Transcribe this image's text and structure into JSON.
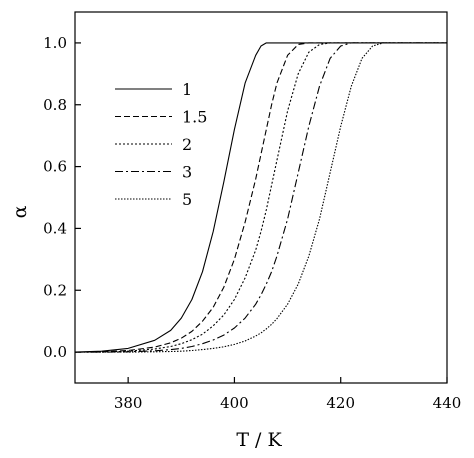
{
  "chart_data": {
    "type": "line",
    "xlabel": "T / K",
    "ylabel": "α",
    "xlim": [
      370,
      440
    ],
    "ylim": [
      -0.1,
      1.1
    ],
    "xticks": [
      380,
      400,
      420,
      440
    ],
    "xtick_labels": [
      "380",
      "400",
      "420",
      "440"
    ],
    "yticks": [
      0.0,
      0.2,
      0.4,
      0.6,
      0.8,
      1.0
    ],
    "ytick_labels": [
      "0.0",
      "0.2",
      "0.4",
      "0.6",
      "0.8",
      "1.0"
    ],
    "legend_position": "upper-left",
    "x": [
      370,
      375,
      380,
      385,
      388,
      390,
      392,
      394,
      396,
      398,
      400,
      402,
      404,
      405,
      406,
      407,
      408,
      410,
      412,
      414,
      416,
      418,
      420,
      422,
      424,
      426,
      428,
      430,
      440
    ],
    "series": [
      {
        "name": "1",
        "dash": "solid",
        "values": [
          0.0,
          0.003,
          0.012,
          0.038,
          0.07,
          0.11,
          0.17,
          0.26,
          0.39,
          0.55,
          0.72,
          0.87,
          0.96,
          0.99,
          1.0,
          1.0,
          1.0,
          1.0,
          1.0,
          1.0,
          1.0,
          1.0,
          1.0,
          1.0,
          1.0,
          1.0,
          1.0,
          1.0,
          1.0
        ]
      },
      {
        "name": "1.5",
        "dash": "dash",
        "values": [
          0.0,
          0.001,
          0.005,
          0.016,
          0.03,
          0.045,
          0.067,
          0.1,
          0.145,
          0.21,
          0.3,
          0.42,
          0.56,
          0.64,
          0.72,
          0.8,
          0.87,
          0.96,
          0.995,
          1.0,
          1.0,
          1.0,
          1.0,
          1.0,
          1.0,
          1.0,
          1.0,
          1.0,
          1.0
        ]
      },
      {
        "name": "2",
        "dash": "dot",
        "values": [
          0.0,
          0.0,
          0.003,
          0.01,
          0.018,
          0.027,
          0.04,
          0.058,
          0.085,
          0.12,
          0.17,
          0.24,
          0.33,
          0.39,
          0.46,
          0.54,
          0.62,
          0.78,
          0.9,
          0.97,
          0.995,
          1.0,
          1.0,
          1.0,
          1.0,
          1.0,
          1.0,
          1.0,
          1.0
        ]
      },
      {
        "name": "3",
        "dash": "dashdot",
        "values": [
          0.0,
          0.0,
          0.001,
          0.004,
          0.008,
          0.012,
          0.018,
          0.027,
          0.039,
          0.055,
          0.078,
          0.11,
          0.155,
          0.185,
          0.22,
          0.26,
          0.31,
          0.43,
          0.58,
          0.73,
          0.86,
          0.95,
          0.99,
          1.0,
          1.0,
          1.0,
          1.0,
          1.0,
          1.0
        ]
      },
      {
        "name": "5",
        "dash": "fineDot",
        "values": [
          0.0,
          0.0,
          0.0,
          0.001,
          0.002,
          0.003,
          0.005,
          0.008,
          0.012,
          0.017,
          0.025,
          0.036,
          0.052,
          0.062,
          0.075,
          0.09,
          0.108,
          0.155,
          0.22,
          0.31,
          0.43,
          0.58,
          0.73,
          0.86,
          0.95,
          0.99,
          1.0,
          1.0,
          1.0
        ]
      }
    ]
  }
}
